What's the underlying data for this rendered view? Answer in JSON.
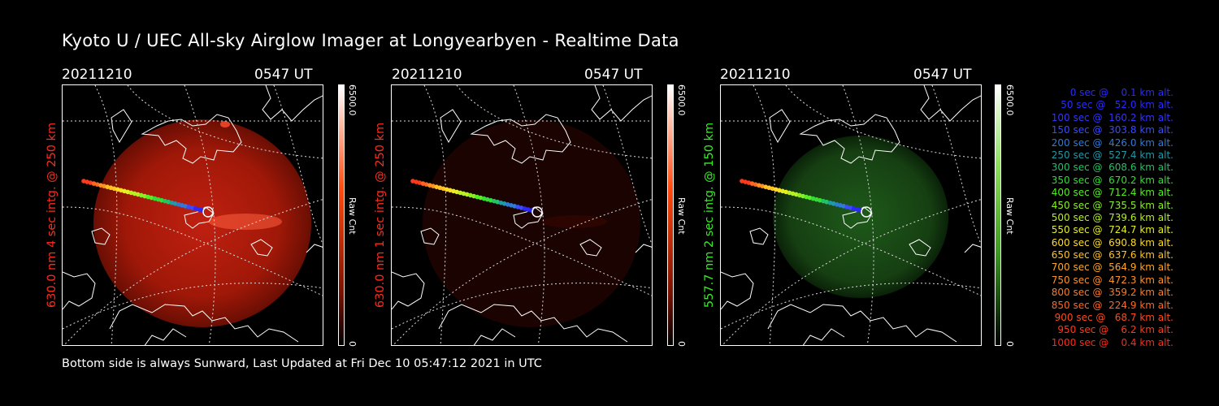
{
  "header": {
    "title": "Kyoto U / UEC All-sky Airglow Imager at Longyearbyen - Realtime Data"
  },
  "footer": {
    "text": "Bottom side is always Sunward, Last Updated at Fri Dec 10 05:47:12 2021 in UTC"
  },
  "panels": [
    {
      "date": "20211210",
      "time": "0547 UT",
      "ylabel": "630.0 nm 4 sec intg. @ 250 km",
      "ylabel_color": "#ff2a1a",
      "cbar_max": "6500.0",
      "cbar_min": "0",
      "cbar_label": "Raw Cnt",
      "cbar_color": "#ff4a10"
    },
    {
      "date": "20211210",
      "time": "0547 UT",
      "ylabel": "630.0 nm 1 sec intg. @ 250 km",
      "ylabel_color": "#ff2a1a",
      "cbar_max": "6500.0",
      "cbar_min": "0",
      "cbar_label": "Raw Cnt",
      "cbar_color": "#ff4a10"
    },
    {
      "date": "20211210",
      "time": "0547 UT",
      "ylabel": "557.7 nm 2 sec intg. @ 150 km",
      "ylabel_color": "#33ee22",
      "cbar_max": "6500.0",
      "cbar_min": "0",
      "cbar_label": "Raw Cnt",
      "cbar_color": "#44cc22"
    }
  ],
  "legend": [
    {
      "text": "0 sec @    0.1 km alt.",
      "color": "#2a2aff"
    },
    {
      "text": "50 sec @   52.0 km alt.",
      "color": "#2a2aff"
    },
    {
      "text": "100 sec @  160.2 km alt.",
      "color": "#3333ff"
    },
    {
      "text": "150 sec @  303.8 km alt.",
      "color": "#3a4aff"
    },
    {
      "text": "200 sec @  426.0 km alt.",
      "color": "#2f7ad8"
    },
    {
      "text": "250 sec @  527.4 km alt.",
      "color": "#1e9aa8"
    },
    {
      "text": "300 sec @  608.6 km alt.",
      "color": "#22c266"
    },
    {
      "text": "350 sec @  670.2 km alt.",
      "color": "#33dd33"
    },
    {
      "text": "400 sec @  712.4 km alt.",
      "color": "#55ee22"
    },
    {
      "text": "450 sec @  735.5 km alt.",
      "color": "#88f022"
    },
    {
      "text": "500 sec @  739.6 km alt.",
      "color": "#b8f022"
    },
    {
      "text": "550 sec @  724.7 km alt.",
      "color": "#e6ee22"
    },
    {
      "text": "600 sec @  690.8 km alt.",
      "color": "#ffdd22"
    },
    {
      "text": "650 sec @  637.6 km alt.",
      "color": "#ffc222"
    },
    {
      "text": "700 sec @  564.9 km alt.",
      "color": "#ffa722"
    },
    {
      "text": "750 sec @  472.3 km alt.",
      "color": "#ff9022"
    },
    {
      "text": "800 sec @  359.2 km alt.",
      "color": "#ff7a22"
    },
    {
      "text": "850 sec @  224.9 km alt.",
      "color": "#ff6622"
    },
    {
      "text": "900 sec @   68.7 km alt.",
      "color": "#ff4a1a"
    },
    {
      "text": "950 sec @    6.2 km alt.",
      "color": "#ff3a1a"
    },
    {
      "text": "1000 sec @    0.4 km alt.",
      "color": "#ff2a1a"
    }
  ]
}
